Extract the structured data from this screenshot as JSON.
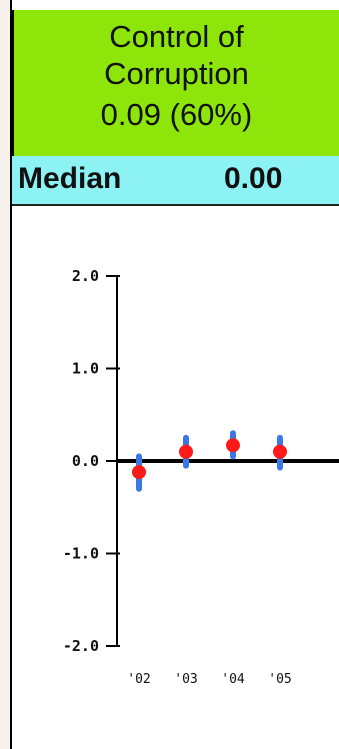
{
  "colors": {
    "header_bg": "#8ee50a",
    "median_bg": "#8cf2f4",
    "point": "#ff1a1a",
    "error_bar": "#3a78e6",
    "baseline": "#000000"
  },
  "header": {
    "title_line1": "Control of",
    "title_line2": "Corruption",
    "score": "0.09 (60%)"
  },
  "median": {
    "label": "Median",
    "value": "0.00"
  },
  "chart_data": {
    "type": "scatter",
    "categories": [
      "'02",
      "'03",
      "'04",
      "'05"
    ],
    "values": [
      -0.12,
      0.1,
      0.17,
      0.1
    ],
    "error_low": [
      -0.3,
      -0.05,
      0.05,
      -0.07
    ],
    "error_high": [
      0.05,
      0.25,
      0.3,
      0.25
    ],
    "ylim": [
      -2.0,
      2.0
    ],
    "yticks": [
      "2.0",
      "1.0",
      "0.0",
      "-1.0",
      "-2.0"
    ],
    "ytick_values": [
      2.0,
      1.0,
      0.0,
      -1.0,
      -2.0
    ],
    "reference_line": 0.0
  }
}
